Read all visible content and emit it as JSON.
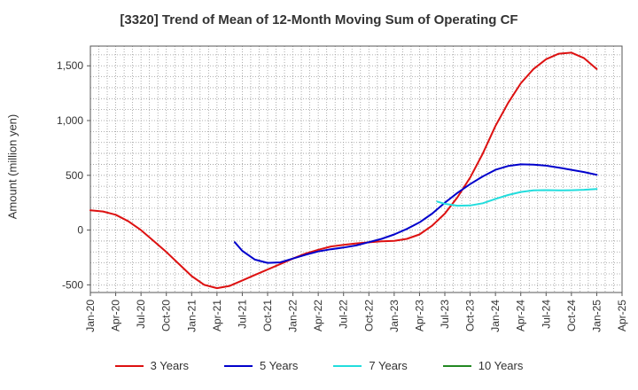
{
  "chart_data": {
    "type": "line",
    "title": "[3320]  Trend of Mean of 12-Month Moving Sum of Operating CF",
    "ylabel": "Amount (million yen)",
    "xlabel": "",
    "ylim": [
      -570,
      1680
    ],
    "yticks": [
      -500,
      0,
      500,
      1000,
      1500
    ],
    "ytick_labels": [
      "-500",
      "0",
      "500",
      "1,000",
      "1,500"
    ],
    "x_categories": [
      "Jan-20",
      "Apr-20",
      "Jul-20",
      "Oct-20",
      "Jan-21",
      "Apr-21",
      "Jul-21",
      "Oct-21",
      "Jan-22",
      "Apr-22",
      "Jul-22",
      "Oct-22",
      "Jan-23",
      "Apr-23",
      "Jul-23",
      "Oct-23",
      "Jan-24",
      "Apr-24",
      "Jul-24",
      "Oct-24",
      "Jan-25",
      "Apr-25"
    ],
    "x_unit": "quarter index (0 = Jan-20)",
    "series": [
      {
        "name": "3 Years",
        "color": "#dd1111",
        "points": [
          [
            0,
            180
          ],
          [
            0.5,
            170
          ],
          [
            1,
            140
          ],
          [
            1.5,
            80
          ],
          [
            2,
            0
          ],
          [
            2.5,
            -100
          ],
          [
            3,
            -200
          ],
          [
            3.5,
            -310
          ],
          [
            4,
            -420
          ],
          [
            4.5,
            -500
          ],
          [
            5,
            -530
          ],
          [
            5.5,
            -510
          ],
          [
            6,
            -460
          ],
          [
            6.5,
            -410
          ],
          [
            7,
            -360
          ],
          [
            7.5,
            -310
          ],
          [
            8,
            -260
          ],
          [
            8.5,
            -215
          ],
          [
            9,
            -180
          ],
          [
            9.5,
            -150
          ],
          [
            10,
            -135
          ],
          [
            10.5,
            -122
          ],
          [
            11,
            -112
          ],
          [
            11.5,
            -103
          ],
          [
            12,
            -98
          ],
          [
            12.5,
            -80
          ],
          [
            13,
            -40
          ],
          [
            13.5,
            40
          ],
          [
            14,
            150
          ],
          [
            14.5,
            300
          ],
          [
            15,
            480
          ],
          [
            15.5,
            700
          ],
          [
            16,
            950
          ],
          [
            16.5,
            1160
          ],
          [
            17,
            1340
          ],
          [
            17.5,
            1470
          ],
          [
            18,
            1560
          ],
          [
            18.5,
            1610
          ],
          [
            19,
            1620
          ],
          [
            19.5,
            1570
          ],
          [
            20,
            1470
          ]
        ]
      },
      {
        "name": "5 Years",
        "color": "#0000cc",
        "points": [
          [
            5.7,
            -110
          ],
          [
            6,
            -190
          ],
          [
            6.5,
            -270
          ],
          [
            7,
            -300
          ],
          [
            7.5,
            -295
          ],
          [
            8,
            -260
          ],
          [
            8.5,
            -225
          ],
          [
            9,
            -195
          ],
          [
            9.5,
            -175
          ],
          [
            10,
            -160
          ],
          [
            10.5,
            -140
          ],
          [
            11,
            -110
          ],
          [
            11.5,
            -80
          ],
          [
            12,
            -40
          ],
          [
            12.5,
            10
          ],
          [
            13,
            70
          ],
          [
            13.5,
            150
          ],
          [
            14,
            250
          ],
          [
            14.5,
            340
          ],
          [
            15,
            420
          ],
          [
            15.5,
            490
          ],
          [
            16,
            550
          ],
          [
            16.5,
            585
          ],
          [
            17,
            600
          ],
          [
            17.5,
            598
          ],
          [
            18,
            588
          ],
          [
            18.5,
            570
          ],
          [
            19,
            550
          ],
          [
            19.5,
            530
          ],
          [
            20,
            505
          ]
        ]
      },
      {
        "name": "7 Years",
        "color": "#22dddd",
        "points": [
          [
            13.7,
            260
          ],
          [
            14,
            240
          ],
          [
            14.5,
            222
          ],
          [
            15,
            225
          ],
          [
            15.5,
            245
          ],
          [
            16,
            285
          ],
          [
            16.5,
            320
          ],
          [
            17,
            348
          ],
          [
            17.5,
            362
          ],
          [
            18,
            365
          ],
          [
            18.5,
            362
          ],
          [
            19,
            364
          ],
          [
            19.5,
            368
          ],
          [
            20,
            375
          ]
        ]
      },
      {
        "name": "10 Years",
        "color": "#228822",
        "points": []
      }
    ]
  }
}
